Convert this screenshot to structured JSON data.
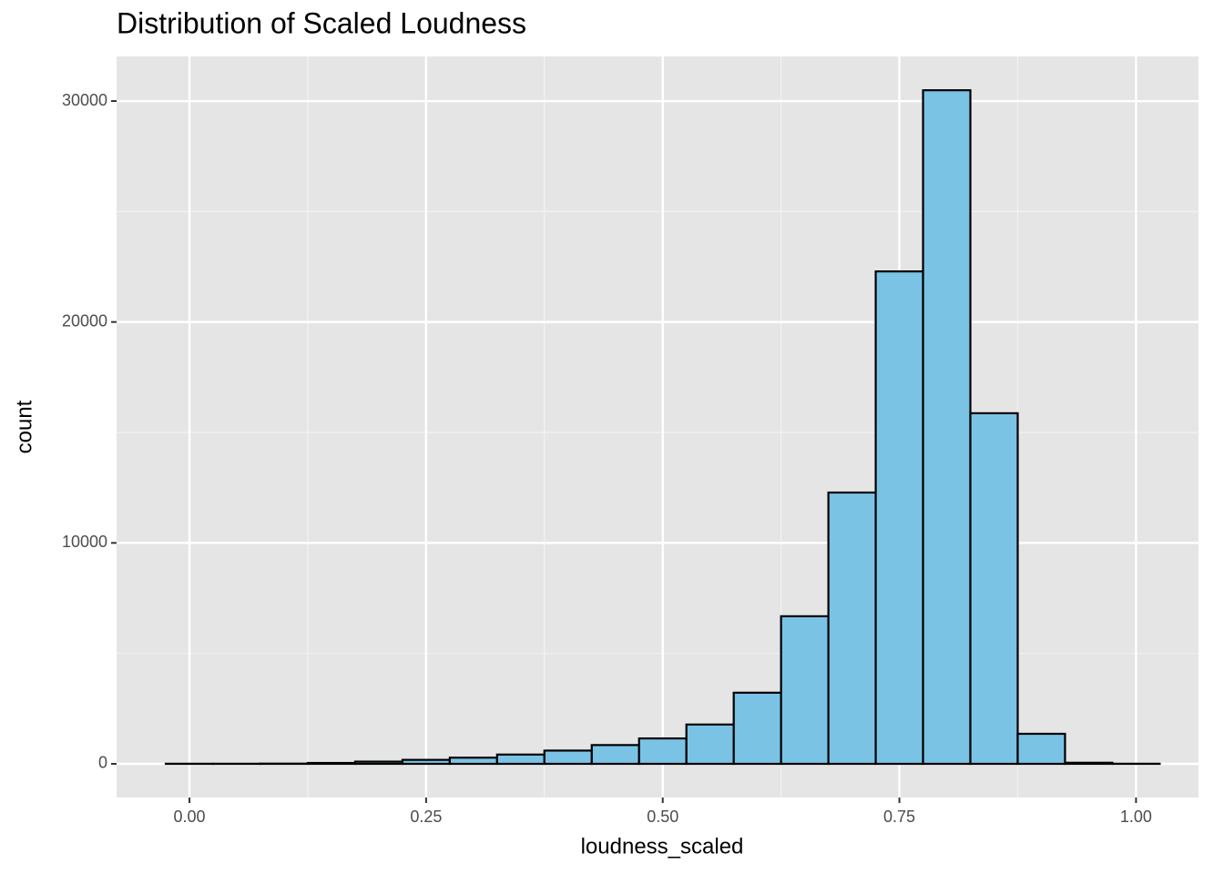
{
  "chart_data": {
    "type": "histogram",
    "title": "Distribution of Scaled Loudness",
    "x_label": "loudness_scaled",
    "y_label": "count",
    "bins": [
      -0.025,
      0.025,
      0.075,
      0.125,
      0.175,
      0.225,
      0.275,
      0.325,
      0.375,
      0.425,
      0.475,
      0.525,
      0.575,
      0.625,
      0.675,
      0.725,
      0.775,
      0.825,
      0.875,
      0.925,
      0.975,
      1.025
    ],
    "values": [
      5,
      5,
      10,
      40,
      100,
      180,
      280,
      420,
      600,
      850,
      1150,
      1780,
      3220,
      6680,
      12280,
      22290,
      30490,
      15870,
      1360,
      50,
      5
    ],
    "color": "#7ac3e5",
    "edge_color": "#000000",
    "xlim": [
      -0.077,
      1.066
    ],
    "ylim": [
      -1525,
      32020
    ],
    "xticks": [
      {
        "value": 0,
        "label": "0.00"
      },
      {
        "value": 0.25,
        "label": "0.25"
      },
      {
        "value": 0.5,
        "label": "0.50"
      },
      {
        "value": 0.75,
        "label": "0.75"
      },
      {
        "value": 1,
        "label": "1.00"
      }
    ],
    "yticks": [
      0,
      10000,
      20000,
      30000
    ],
    "grid": true
  }
}
